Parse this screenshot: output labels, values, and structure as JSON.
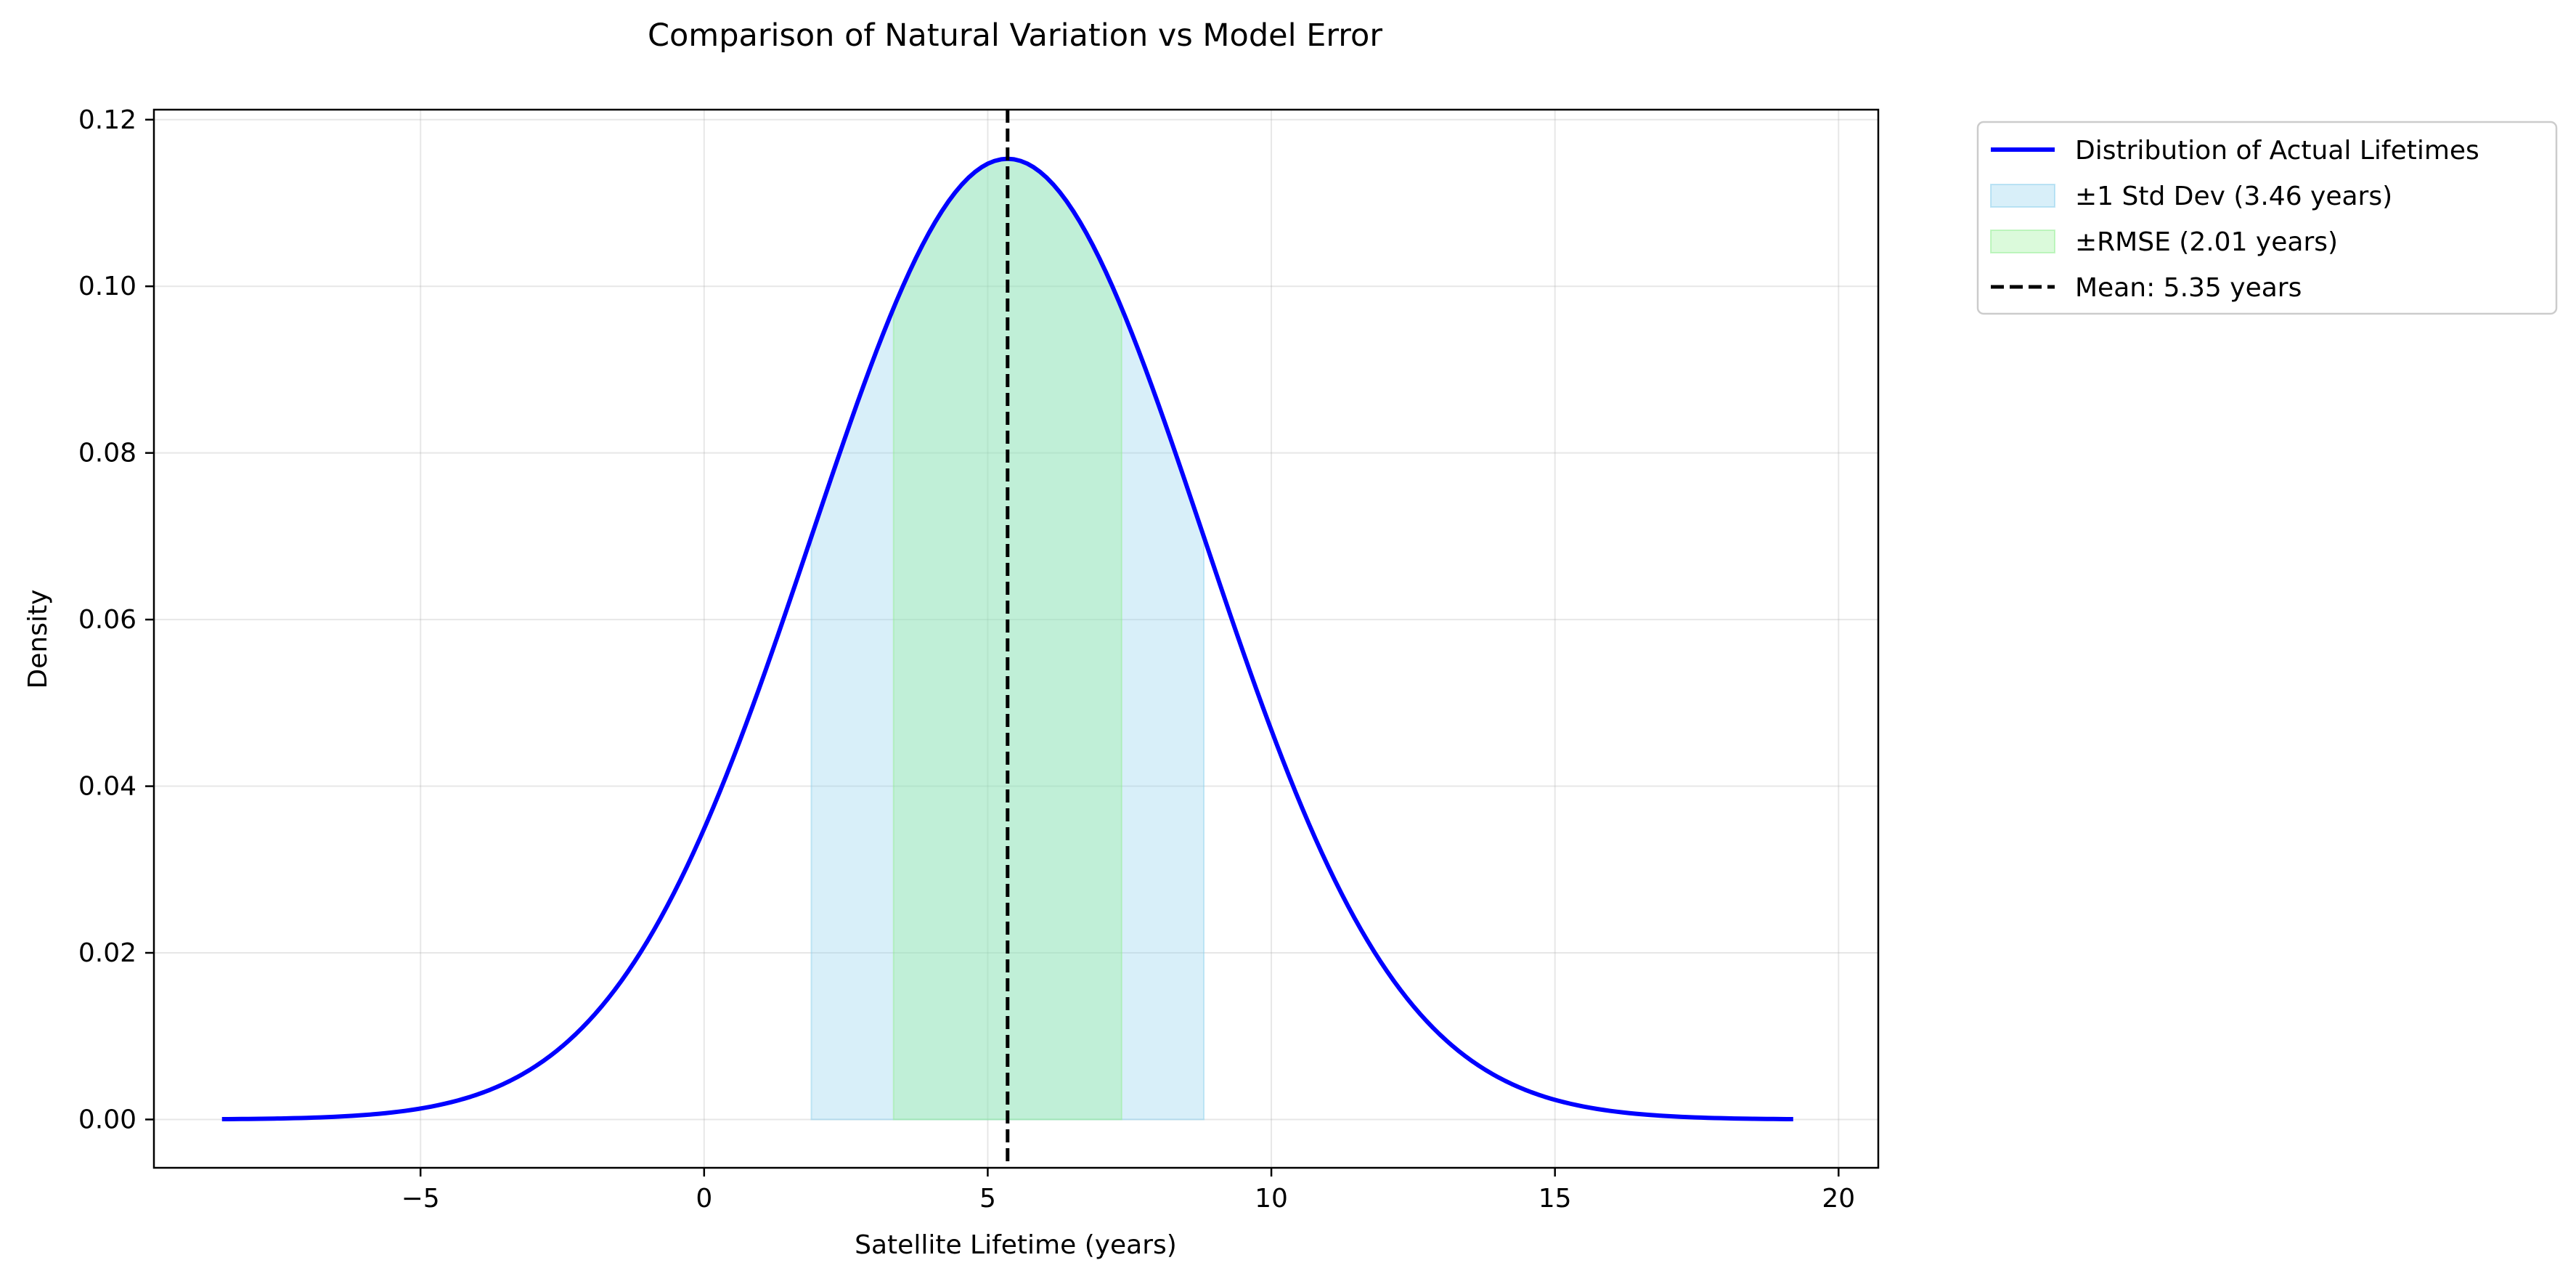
{
  "chart_data": {
    "type": "line",
    "title": "Comparison of Natural Variation vs Model Error",
    "xlabel": "Satellite Lifetime (years)",
    "ylabel": "Density",
    "xlim": [
      -9.7,
      20.7
    ],
    "ylim": [
      -0.0058,
      0.1212
    ],
    "xticks": [
      -5,
      0,
      5,
      10,
      15,
      20
    ],
    "xtick_labels": [
      "−5",
      "0",
      "5",
      "10",
      "15",
      "20"
    ],
    "yticks": [
      0.0,
      0.02,
      0.04,
      0.06,
      0.08,
      0.1,
      0.12
    ],
    "ytick_labels": [
      "0.00",
      "0.02",
      "0.04",
      "0.06",
      "0.08",
      "0.10",
      "0.12"
    ],
    "grid": true,
    "legend_position": "outside-top-right",
    "curve": {
      "distribution": "normal",
      "mean": 5.35,
      "std": 3.46,
      "x_range": [
        -8.5,
        19.2
      ],
      "peak_density": 0.1153
    },
    "series": [
      {
        "name": "Distribution of Actual Lifetimes",
        "kind": "line",
        "color": "#0000ff"
      },
      {
        "name": "±1 Std Dev (3.46 years)",
        "kind": "band",
        "x_from": 1.89,
        "x_to": 8.81,
        "color": "#87ceeb"
      },
      {
        "name": "±RMSE (2.01 years)",
        "kind": "band",
        "x_from": 3.34,
        "x_to": 7.36,
        "color": "#90ee90"
      },
      {
        "name": "Mean: 5.35 years",
        "kind": "vline",
        "x": 5.35,
        "color": "#000000"
      }
    ]
  }
}
